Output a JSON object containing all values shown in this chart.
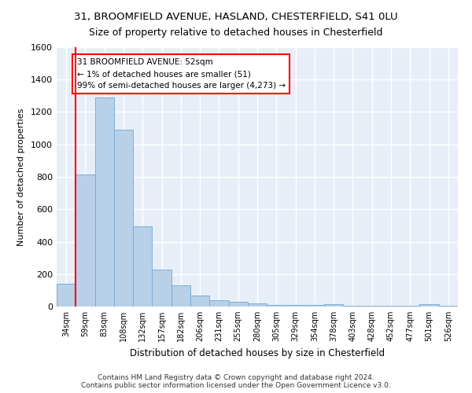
{
  "title_line1": "31, BROOMFIELD AVENUE, HASLAND, CHESTERFIELD, S41 0LU",
  "title_line2": "Size of property relative to detached houses in Chesterfield",
  "xlabel": "Distribution of detached houses by size in Chesterfield",
  "ylabel": "Number of detached properties",
  "bar_color": "#b8d0e8",
  "bar_edge_color": "#7aafd4",
  "background_color": "#e8eef8",
  "grid_color": "#ffffff",
  "categories": [
    "34sqm",
    "59sqm",
    "83sqm",
    "108sqm",
    "132sqm",
    "157sqm",
    "182sqm",
    "206sqm",
    "231sqm",
    "255sqm",
    "280sqm",
    "305sqm",
    "329sqm",
    "354sqm",
    "378sqm",
    "403sqm",
    "428sqm",
    "452sqm",
    "477sqm",
    "501sqm",
    "526sqm"
  ],
  "bar_heights": [
    140,
    815,
    1290,
    1090,
    495,
    230,
    130,
    68,
    40,
    28,
    20,
    8,
    8,
    8,
    14,
    3,
    3,
    3,
    3,
    14,
    3
  ],
  "ylim": [
    0,
    1600
  ],
  "yticks": [
    0,
    200,
    400,
    600,
    800,
    1000,
    1200,
    1400,
    1600
  ],
  "annotation_line1": "31 BROOMFIELD AVENUE: 52sqm",
  "annotation_line2": "← 1% of detached houses are smaller (51)",
  "annotation_line3": "99% of semi-detached houses are larger (4,273) →",
  "footer_line1": "Contains HM Land Registry data © Crown copyright and database right 2024.",
  "footer_line2": "Contains public sector information licensed under the Open Government Licence v3.0."
}
